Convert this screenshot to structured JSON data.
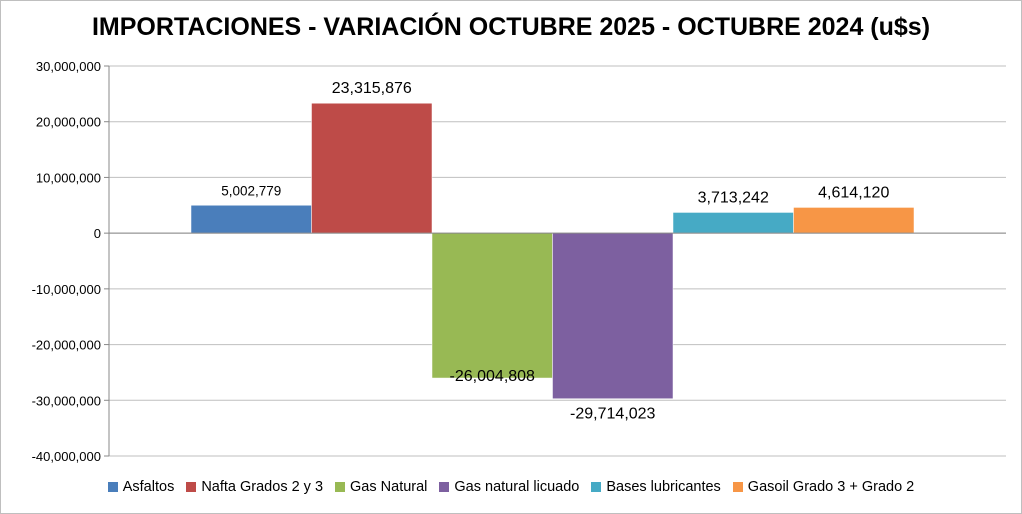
{
  "chart_data": {
    "type": "bar",
    "title": "IMPORTACIONES - VARIACIÓN OCTUBRE 2025 - OCTUBRE 2024 (u$s)",
    "xlabel": "",
    "ylabel": "",
    "ylim": [
      -40000000,
      30000000
    ],
    "yticks": [
      30000000,
      20000000,
      10000000,
      0,
      -10000000,
      -20000000,
      -30000000,
      -40000000
    ],
    "ytick_labels": [
      "30,000,000",
      "20,000,000",
      "10,000,000",
      "0",
      "-10,000,000",
      "-20,000,000",
      "-30,000,000",
      "-40,000,000"
    ],
    "grid": true,
    "legend_position": "bottom",
    "series": [
      {
        "name": "Asfaltos",
        "value": 5002779,
        "label": "5,002,779",
        "color": "#4a7ebb"
      },
      {
        "name": "Nafta Grados 2 y 3",
        "value": 23315876,
        "label": "23,315,876",
        "color": "#be4b48"
      },
      {
        "name": "Gas Natural",
        "value": -26004808,
        "label": "-26,004,808",
        "color": "#98b954"
      },
      {
        "name": "Gas natural licuado",
        "value": -29714023,
        "label": "-29,714,023",
        "color": "#7d60a0"
      },
      {
        "name": "Bases lubricantes",
        "value": 3713242,
        "label": "3,713,242",
        "color": "#46aac5"
      },
      {
        "name": "Gasoil Grado 3 + Grado 2",
        "value": 4614120,
        "label": "4,614,120",
        "color": "#f79646"
      }
    ]
  }
}
